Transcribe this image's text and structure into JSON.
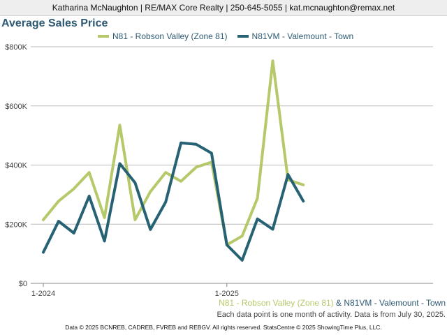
{
  "header": {
    "contact": "Katharina McNaughton | RE/MAX Core Realty | 250-645-5055 | kat.mcnaughton@remax.net"
  },
  "colors": {
    "series1": "#b5c96a",
    "series2": "#266273",
    "grid": "#bbbbbb",
    "title": "#2d5973"
  },
  "chart_data": {
    "type": "line",
    "title": "Average Sales Price",
    "y_ticks": [
      "$0",
      "$200K",
      "$400K",
      "$600K",
      "$800K"
    ],
    "x_tick_labels": [
      {
        "index": 0,
        "label": "1-2024"
      },
      {
        "index": 12,
        "label": "1-2025"
      }
    ],
    "ylim": [
      0,
      800000
    ],
    "grid": true,
    "legend": "top",
    "series": [
      {
        "name": "N81 - Robson Valley (Zone 81)",
        "values": [
          215000,
          278000,
          320000,
          375000,
          222000,
          535000,
          215000,
          310000,
          375000,
          345000,
          393000,
          410000,
          130000,
          160000,
          288000,
          752000,
          350000,
          333000
        ]
      },
      {
        "name": "N81VM - Valemount - Town",
        "values": [
          105000,
          210000,
          170000,
          295000,
          143000,
          405000,
          340000,
          182000,
          275000,
          475000,
          470000,
          440000,
          130000,
          78000,
          218000,
          183000,
          368000,
          278000
        ]
      }
    ]
  },
  "footer": {
    "series_line_amp": "&",
    "note": "Each data point is one month of activity. Data is from July 30, 2025.",
    "copyright": "Data © 2025 BCNREB, CADREB, FVREB and REBGV. All rights reserved. StatsCentre © 2025 ShowingTime Plus, LLC."
  }
}
